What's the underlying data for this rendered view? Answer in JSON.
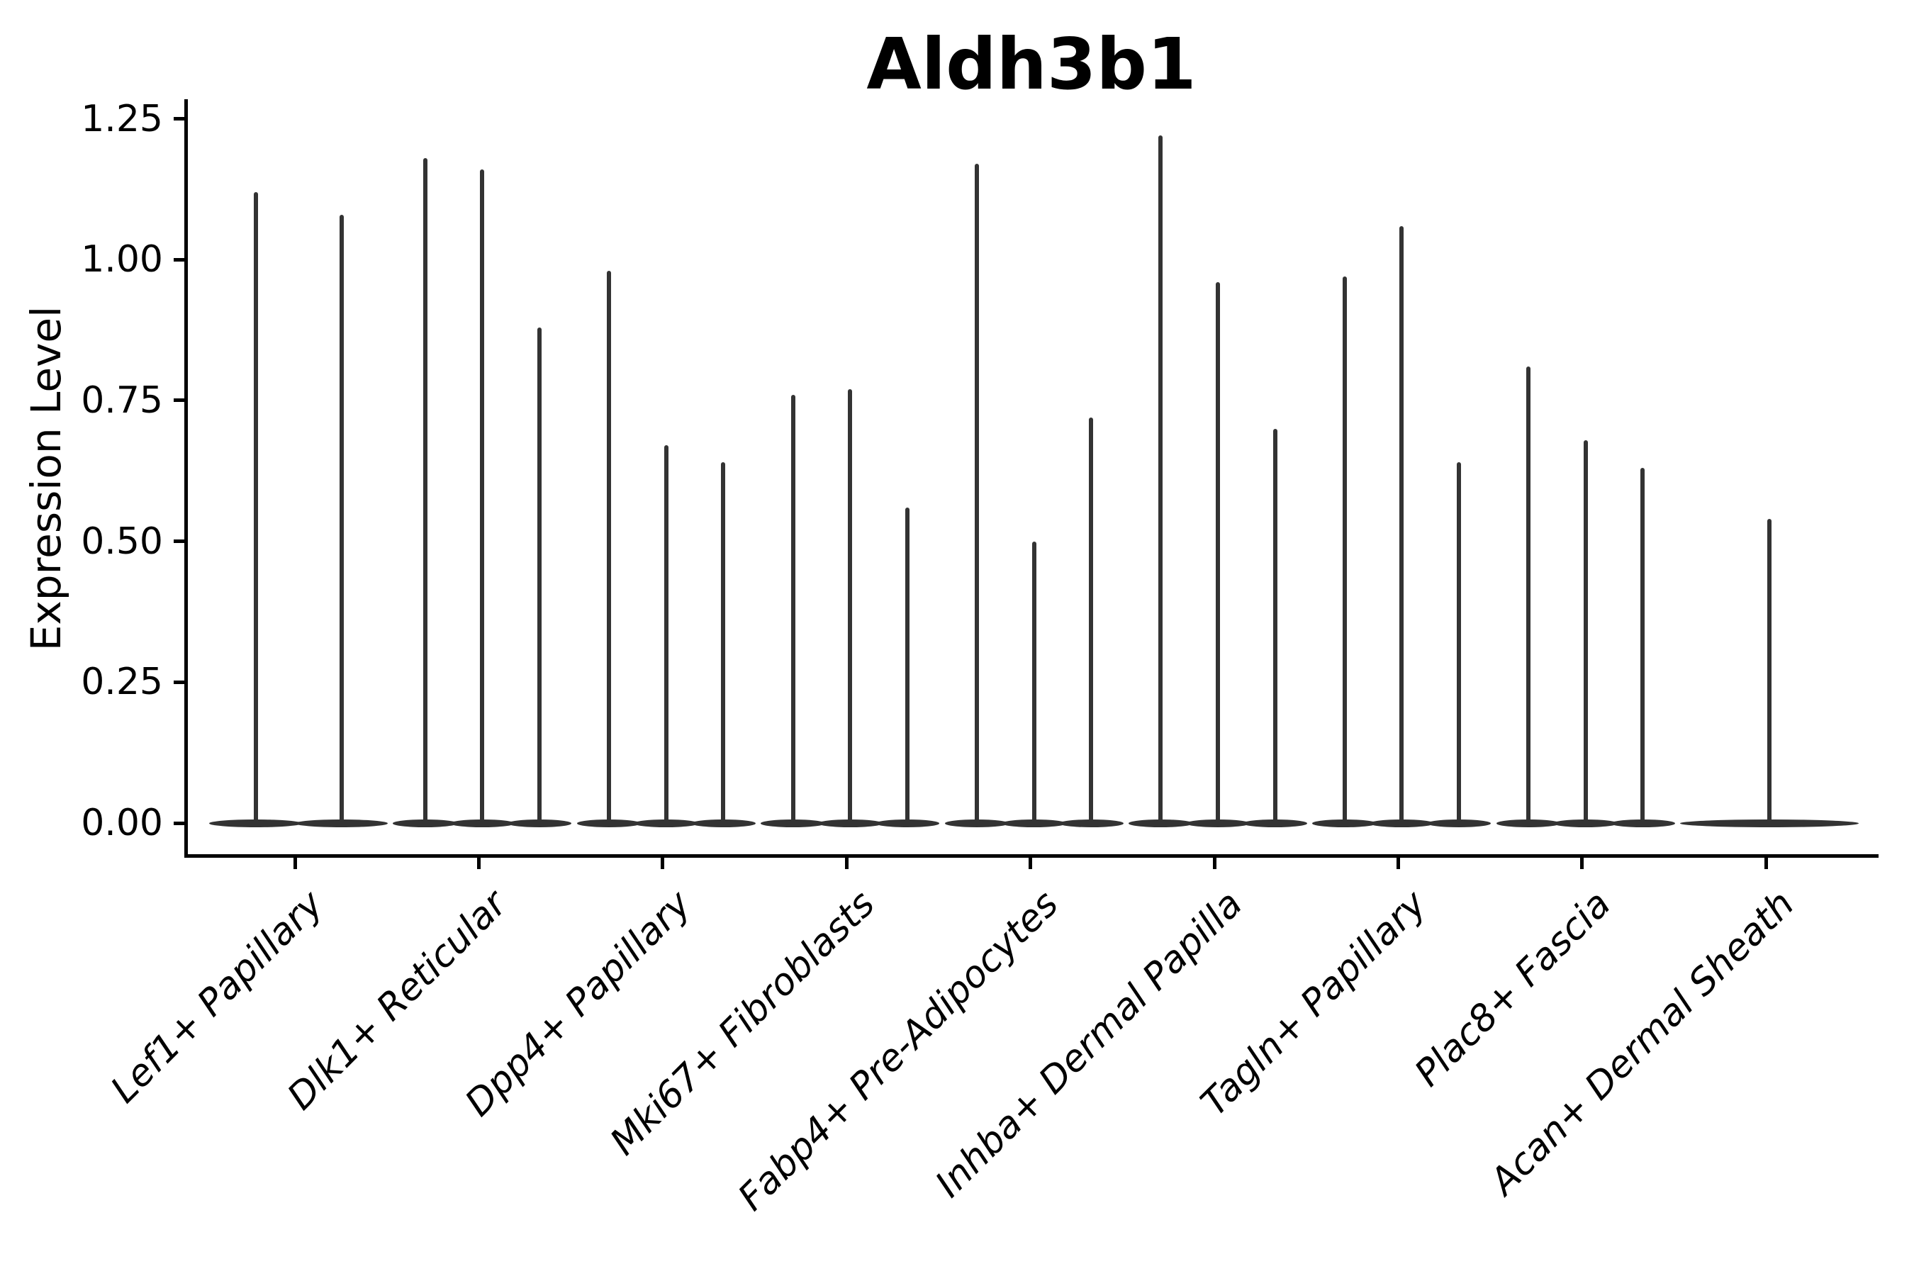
{
  "figure": {
    "background_color": "#ffffff",
    "axis_color": "#000000",
    "text_color": "#000000"
  },
  "chart_data": {
    "type": "violin",
    "title": "Aldh3b1",
    "xlabel": "",
    "ylabel": "Expression Level",
    "ylim": [
      -0.06,
      1.285
    ],
    "yticks": [
      {
        "value": 0.0,
        "label": "0.00"
      },
      {
        "value": 0.25,
        "label": "0.25"
      },
      {
        "value": 0.5,
        "label": "0.50"
      },
      {
        "value": 0.75,
        "label": "0.75"
      },
      {
        "value": 1.0,
        "label": "1.00"
      },
      {
        "value": 1.25,
        "label": "1.25"
      }
    ],
    "grid": false,
    "legend": null,
    "violin_color": "#333333",
    "shape_note": "Each violin is a near-zero-width spike: a wide flat base at expression 0 with a thin vertical needle rising to the peak value.",
    "categories": [
      "Lef1+ Papillary",
      "Dlk1+ Reticular",
      "Dpp4+ Papillary",
      "Mki67+ Fibroblasts",
      "Fabp4+ Pre-Adipocytes",
      "Inhba+ Dermal Papilla",
      "Tagln+ Papillary",
      "Plac8+ Fascia",
      "Acan+ Dermal Sheath"
    ],
    "violin_peaks_per_category": [
      [
        1.12,
        1.08
      ],
      [
        1.18,
        1.16,
        0.88
      ],
      [
        0.98,
        0.67,
        0.64
      ],
      [
        0.76,
        0.77,
        0.56
      ],
      [
        1.17,
        0.5,
        0.72
      ],
      [
        1.22,
        0.96,
        0.7
      ],
      [
        0.97,
        1.06,
        0.64
      ],
      [
        0.81,
        0.68,
        0.63
      ],
      [
        0.54
      ]
    ]
  }
}
